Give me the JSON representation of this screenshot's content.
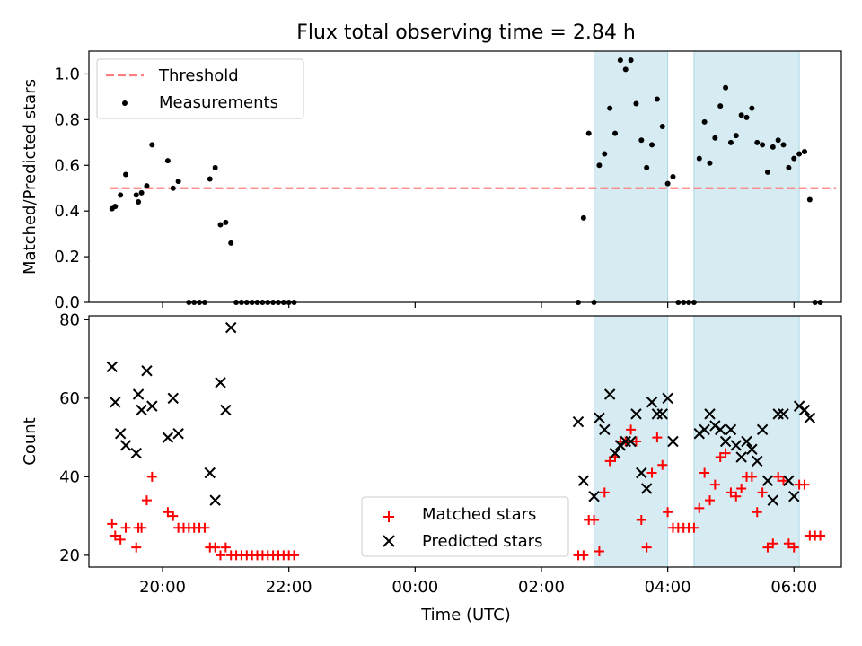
{
  "title": "Flux total observing time = 2.84 h",
  "colors": {
    "threshold": "#ff7f7f",
    "measurements": "#000000",
    "matched": "#ff0000",
    "predicted": "#000000",
    "shade": "#add8e6"
  },
  "chart_data": [
    {
      "type": "scatter",
      "ylabel": "Matched/Predicted stars",
      "ylim": [
        0,
        1.1
      ],
      "yticks": [
        "0.0",
        "0.2",
        "0.4",
        "0.6",
        "0.8",
        "1.0"
      ],
      "legend_position": "top-left",
      "threshold": {
        "name": "Threshold",
        "value": 0.5,
        "x_range": [
          "19:10",
          "06:40"
        ]
      },
      "shaded_intervals": [
        [
          "02:50",
          "04:00"
        ],
        [
          "04:25",
          "06:05"
        ]
      ],
      "series": [
        {
          "name": "Measurements",
          "points": [
            [
              "19:12",
              0.41
            ],
            [
              "19:15",
              0.42
            ],
            [
              "19:20",
              0.47
            ],
            [
              "19:25",
              0.56
            ],
            [
              "19:35",
              0.47
            ],
            [
              "19:37",
              0.44
            ],
            [
              "19:40",
              0.48
            ],
            [
              "19:45",
              0.51
            ],
            [
              "19:50",
              0.69
            ],
            [
              "20:05",
              0.62
            ],
            [
              "20:10",
              0.5
            ],
            [
              "20:15",
              0.53
            ],
            [
              "20:25",
              0.0
            ],
            [
              "20:30",
              0.0
            ],
            [
              "20:35",
              0.0
            ],
            [
              "20:40",
              0.0
            ],
            [
              "20:45",
              0.54
            ],
            [
              "20:50",
              0.59
            ],
            [
              "20:55",
              0.34
            ],
            [
              "21:00",
              0.35
            ],
            [
              "21:05",
              0.26
            ],
            [
              "21:10",
              0.0
            ],
            [
              "21:15",
              0.0
            ],
            [
              "21:20",
              0.0
            ],
            [
              "21:25",
              0.0
            ],
            [
              "21:30",
              0.0
            ],
            [
              "21:35",
              0.0
            ],
            [
              "21:40",
              0.0
            ],
            [
              "21:45",
              0.0
            ],
            [
              "21:50",
              0.0
            ],
            [
              "21:55",
              0.0
            ],
            [
              "22:00",
              0.0
            ],
            [
              "22:05",
              0.0
            ],
            [
              "02:35",
              0.0
            ],
            [
              "02:40",
              0.37
            ],
            [
              "02:45",
              0.74
            ],
            [
              "02:50",
              0.0
            ],
            [
              "02:55",
              0.6
            ],
            [
              "03:00",
              0.65
            ],
            [
              "03:05",
              0.85
            ],
            [
              "03:10",
              0.74
            ],
            [
              "03:15",
              1.06
            ],
            [
              "03:20",
              1.02
            ],
            [
              "03:25",
              1.06
            ],
            [
              "03:30",
              0.87
            ],
            [
              "03:35",
              0.71
            ],
            [
              "03:40",
              0.59
            ],
            [
              "03:45",
              0.69
            ],
            [
              "03:50",
              0.89
            ],
            [
              "03:55",
              0.77
            ],
            [
              "04:00",
              0.52
            ],
            [
              "04:05",
              0.55
            ],
            [
              "04:10",
              0.0
            ],
            [
              "04:15",
              0.0
            ],
            [
              "04:20",
              0.0
            ],
            [
              "04:25",
              0.0
            ],
            [
              "04:30",
              0.63
            ],
            [
              "04:35",
              0.79
            ],
            [
              "04:40",
              0.61
            ],
            [
              "04:45",
              0.72
            ],
            [
              "04:50",
              0.86
            ],
            [
              "04:55",
              0.94
            ],
            [
              "05:00",
              0.7
            ],
            [
              "05:05",
              0.73
            ],
            [
              "05:10",
              0.82
            ],
            [
              "05:15",
              0.81
            ],
            [
              "05:20",
              0.85
            ],
            [
              "05:25",
              0.7
            ],
            [
              "05:30",
              0.69
            ],
            [
              "05:35",
              0.57
            ],
            [
              "05:40",
              0.68
            ],
            [
              "05:45",
              0.71
            ],
            [
              "05:50",
              0.69
            ],
            [
              "05:55",
              0.59
            ],
            [
              "06:00",
              0.63
            ],
            [
              "06:05",
              0.65
            ],
            [
              "06:10",
              0.66
            ],
            [
              "06:15",
              0.45
            ],
            [
              "06:20",
              0.0
            ],
            [
              "06:25",
              0.0
            ]
          ]
        }
      ]
    },
    {
      "type": "scatter",
      "xlabel": "Time (UTC)",
      "ylabel": "Count",
      "ylim": [
        17,
        81
      ],
      "yticks": [
        "20",
        "40",
        "60",
        "80"
      ],
      "xticks": [
        "20:00",
        "22:00",
        "00:00",
        "02:00",
        "04:00",
        "06:00"
      ],
      "xlim": [
        "18:50",
        "06:45"
      ],
      "legend_position": "lower-center",
      "shaded_intervals": [
        [
          "02:50",
          "04:00"
        ],
        [
          "04:25",
          "06:05"
        ]
      ],
      "series": [
        {
          "name": "Matched stars",
          "marker": "+",
          "points": [
            [
              "19:12",
              28
            ],
            [
              "19:15",
              25
            ],
            [
              "19:20",
              24
            ],
            [
              "19:25",
              27
            ],
            [
              "19:35",
              22
            ],
            [
              "19:37",
              27
            ],
            [
              "19:40",
              27
            ],
            [
              "19:45",
              34
            ],
            [
              "19:50",
              40
            ],
            [
              "20:05",
              31
            ],
            [
              "20:10",
              30
            ],
            [
              "20:15",
              27
            ],
            [
              "20:20",
              27
            ],
            [
              "20:25",
              27
            ],
            [
              "20:30",
              27
            ],
            [
              "20:35",
              27
            ],
            [
              "20:40",
              27
            ],
            [
              "20:45",
              22
            ],
            [
              "20:50",
              22
            ],
            [
              "20:55",
              20
            ],
            [
              "21:00",
              22
            ],
            [
              "21:05",
              20
            ],
            [
              "21:10",
              20
            ],
            [
              "21:15",
              20
            ],
            [
              "21:20",
              20
            ],
            [
              "21:25",
              20
            ],
            [
              "21:30",
              20
            ],
            [
              "21:35",
              20
            ],
            [
              "21:40",
              20
            ],
            [
              "21:45",
              20
            ],
            [
              "21:50",
              20
            ],
            [
              "21:55",
              20
            ],
            [
              "22:00",
              20
            ],
            [
              "22:05",
              20
            ],
            [
              "02:35",
              20
            ],
            [
              "02:40",
              20
            ],
            [
              "02:45",
              29
            ],
            [
              "02:50",
              29
            ],
            [
              "02:55",
              21
            ],
            [
              "03:00",
              36
            ],
            [
              "03:05",
              44
            ],
            [
              "03:10",
              45
            ],
            [
              "03:15",
              49
            ],
            [
              "03:20",
              49
            ],
            [
              "03:25",
              52
            ],
            [
              "03:30",
              49
            ],
            [
              "03:35",
              29
            ],
            [
              "03:40",
              22
            ],
            [
              "03:45",
              41
            ],
            [
              "03:50",
              50
            ],
            [
              "03:55",
              43
            ],
            [
              "04:00",
              31
            ],
            [
              "04:05",
              27
            ],
            [
              "04:10",
              27
            ],
            [
              "04:15",
              27
            ],
            [
              "04:20",
              27
            ],
            [
              "04:25",
              27
            ],
            [
              "04:30",
              32
            ],
            [
              "04:35",
              41
            ],
            [
              "04:40",
              34
            ],
            [
              "04:45",
              38
            ],
            [
              "04:50",
              45
            ],
            [
              "04:55",
              46
            ],
            [
              "05:00",
              36
            ],
            [
              "05:05",
              35
            ],
            [
              "05:10",
              37
            ],
            [
              "05:15",
              40
            ],
            [
              "05:20",
              40
            ],
            [
              "05:25",
              31
            ],
            [
              "05:30",
              36
            ],
            [
              "05:35",
              22
            ],
            [
              "05:40",
              23
            ],
            [
              "05:45",
              40
            ],
            [
              "05:50",
              39
            ],
            [
              "05:55",
              23
            ],
            [
              "06:00",
              22
            ],
            [
              "06:05",
              38
            ],
            [
              "06:10",
              38
            ],
            [
              "06:15",
              25
            ],
            [
              "06:20",
              25
            ],
            [
              "06:25",
              25
            ]
          ]
        },
        {
          "name": "Predicted stars",
          "marker": "x",
          "points": [
            [
              "19:12",
              68
            ],
            [
              "19:15",
              59
            ],
            [
              "19:20",
              51
            ],
            [
              "19:25",
              48
            ],
            [
              "19:35",
              46
            ],
            [
              "19:37",
              61
            ],
            [
              "19:40",
              57
            ],
            [
              "19:45",
              67
            ],
            [
              "19:50",
              58
            ],
            [
              "20:05",
              50
            ],
            [
              "20:10",
              60
            ],
            [
              "20:15",
              51
            ],
            [
              "20:45",
              41
            ],
            [
              "20:50",
              34
            ],
            [
              "20:55",
              64
            ],
            [
              "21:00",
              57
            ],
            [
              "21:05",
              78
            ],
            [
              "02:35",
              54
            ],
            [
              "02:40",
              39
            ],
            [
              "02:50",
              35
            ],
            [
              "02:55",
              55
            ],
            [
              "03:00",
              52
            ],
            [
              "03:05",
              61
            ],
            [
              "03:10",
              46
            ],
            [
              "03:15",
              48
            ],
            [
              "03:20",
              49
            ],
            [
              "03:25",
              49
            ],
            [
              "03:30",
              56
            ],
            [
              "03:35",
              41
            ],
            [
              "03:40",
              37
            ],
            [
              "03:45",
              59
            ],
            [
              "03:50",
              56
            ],
            [
              "03:55",
              56
            ],
            [
              "04:00",
              60
            ],
            [
              "04:05",
              49
            ],
            [
              "04:30",
              51
            ],
            [
              "04:35",
              52
            ],
            [
              "04:40",
              56
            ],
            [
              "04:45",
              53
            ],
            [
              "04:50",
              52
            ],
            [
              "04:55",
              49
            ],
            [
              "05:00",
              52
            ],
            [
              "05:05",
              48
            ],
            [
              "05:10",
              45
            ],
            [
              "05:15",
              49
            ],
            [
              "05:20",
              47
            ],
            [
              "05:25",
              44
            ],
            [
              "05:30",
              52
            ],
            [
              "05:35",
              39
            ],
            [
              "05:40",
              34
            ],
            [
              "05:45",
              56
            ],
            [
              "05:50",
              56
            ],
            [
              "05:55",
              39
            ],
            [
              "06:00",
              35
            ],
            [
              "06:05",
              58
            ],
            [
              "06:10",
              57
            ],
            [
              "06:15",
              55
            ]
          ]
        }
      ]
    }
  ]
}
